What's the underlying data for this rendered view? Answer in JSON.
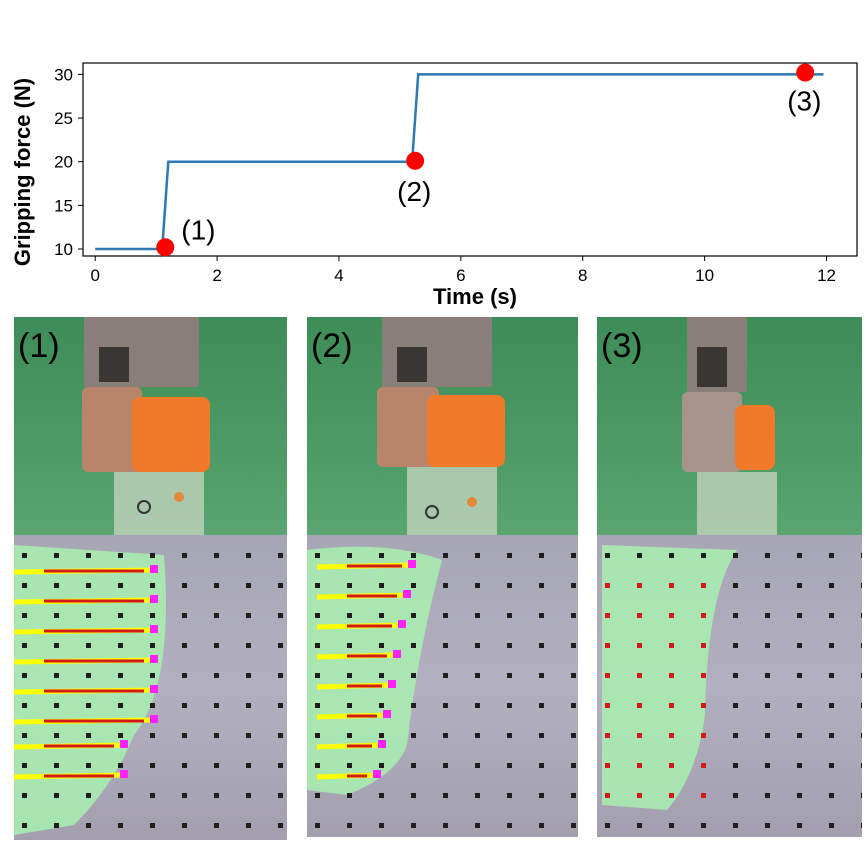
{
  "chart_data": {
    "type": "line",
    "xlabel": "Time (s)",
    "ylabel": "Gripping force (N)",
    "xlim": [
      -0.2,
      12.5
    ],
    "ylim": [
      9.2,
      31.3
    ],
    "xticks": [
      0,
      2,
      4,
      6,
      8,
      10,
      12
    ],
    "yticks": [
      10,
      15,
      20,
      25,
      30
    ],
    "series": [
      {
        "color": "#2e78b4",
        "x": [
          0,
          1.1,
          1.2,
          5.2,
          5.3,
          11.95
        ],
        "y": [
          10,
          10,
          20,
          20,
          30,
          30
        ]
      }
    ],
    "markers": [
      {
        "x": 1.15,
        "y": 10.2,
        "label": "(1)"
      },
      {
        "x": 5.25,
        "y": 20.1,
        "label": "(2)"
      },
      {
        "x": 11.65,
        "y": 30.2,
        "label": "(3)"
      }
    ],
    "marker_color": "#ff0000",
    "grid": false
  },
  "panels": [
    {
      "label": "(1)",
      "arrows": "large"
    },
    {
      "label": "(2)",
      "arrows": "medium"
    },
    {
      "label": "(3)",
      "arrows": "none"
    }
  ]
}
